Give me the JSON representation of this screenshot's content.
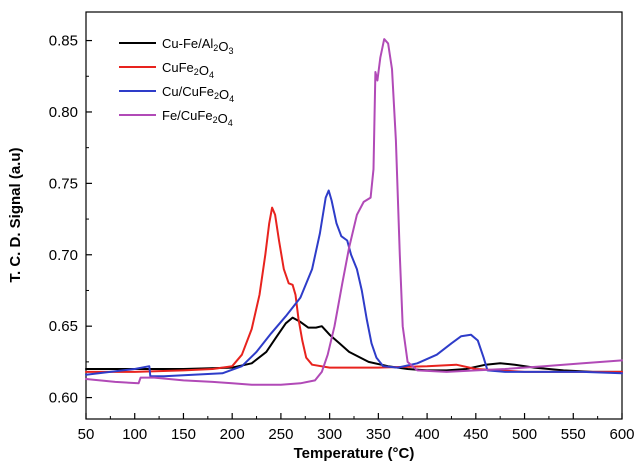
{
  "chart_data": {
    "type": "line",
    "title": "",
    "xlabel": "Temperature (°C)",
    "ylabel": "T. C. D. Signal (a.u)",
    "xlim": [
      50,
      600
    ],
    "ylim": [
      0.585,
      0.87
    ],
    "xticks": [
      50,
      100,
      150,
      200,
      250,
      300,
      350,
      400,
      450,
      500,
      550,
      600
    ],
    "xtick_labels": [
      "50",
      "100",
      "150",
      "200",
      "250",
      "300",
      "350",
      "400",
      "450",
      "500",
      "550",
      "600"
    ],
    "yticks": [
      0.6,
      0.65,
      0.7,
      0.75,
      0.8,
      0.85
    ],
    "ytick_labels": [
      "0.60",
      "0.65",
      "0.70",
      "0.75",
      "0.80",
      "0.85"
    ],
    "grid": false,
    "legend_position": "top-left",
    "series": [
      {
        "name": "Cu-Fe/Al2O3",
        "label_parts": [
          {
            "t": "Cu-Fe/Al"
          },
          {
            "t": "2",
            "sub": true
          },
          {
            "t": "O"
          },
          {
            "t": "3",
            "sub": true
          }
        ],
        "color": "#000000",
        "points": [
          [
            50,
            0.62
          ],
          [
            100,
            0.62
          ],
          [
            150,
            0.62
          ],
          [
            200,
            0.621
          ],
          [
            220,
            0.624
          ],
          [
            235,
            0.632
          ],
          [
            245,
            0.642
          ],
          [
            255,
            0.652
          ],
          [
            262,
            0.656
          ],
          [
            270,
            0.653
          ],
          [
            278,
            0.649
          ],
          [
            286,
            0.649
          ],
          [
            292,
            0.65
          ],
          [
            300,
            0.644
          ],
          [
            310,
            0.638
          ],
          [
            320,
            0.632
          ],
          [
            340,
            0.625
          ],
          [
            360,
            0.622
          ],
          [
            380,
            0.62
          ],
          [
            400,
            0.619
          ],
          [
            420,
            0.619
          ],
          [
            440,
            0.62
          ],
          [
            460,
            0.623
          ],
          [
            475,
            0.624
          ],
          [
            490,
            0.623
          ],
          [
            510,
            0.621
          ],
          [
            540,
            0.619
          ],
          [
            570,
            0.618
          ],
          [
            600,
            0.618
          ]
        ]
      },
      {
        "name": "CuFe2O4",
        "label_parts": [
          {
            "t": "CuFe"
          },
          {
            "t": "2",
            "sub": true
          },
          {
            "t": "O"
          },
          {
            "t": "4",
            "sub": true
          }
        ],
        "color": "#e8231e",
        "points": [
          [
            50,
            0.618
          ],
          [
            100,
            0.618
          ],
          [
            150,
            0.619
          ],
          [
            180,
            0.62
          ],
          [
            200,
            0.622
          ],
          [
            210,
            0.63
          ],
          [
            220,
            0.648
          ],
          [
            228,
            0.672
          ],
          [
            234,
            0.7
          ],
          [
            238,
            0.722
          ],
          [
            241,
            0.733
          ],
          [
            244,
            0.728
          ],
          [
            248,
            0.71
          ],
          [
            253,
            0.69
          ],
          [
            258,
            0.68
          ],
          [
            262,
            0.679
          ],
          [
            265,
            0.672
          ],
          [
            268,
            0.655
          ],
          [
            272,
            0.64
          ],
          [
            276,
            0.628
          ],
          [
            282,
            0.623
          ],
          [
            300,
            0.621
          ],
          [
            350,
            0.621
          ],
          [
            400,
            0.622
          ],
          [
            430,
            0.623
          ],
          [
            450,
            0.62
          ],
          [
            500,
            0.618
          ],
          [
            550,
            0.618
          ],
          [
            600,
            0.618
          ]
        ]
      },
      {
        "name": "Cu/CuFe2O4",
        "label_parts": [
          {
            "t": "Cu/CuFe"
          },
          {
            "t": "2",
            "sub": true
          },
          {
            "t": "O"
          },
          {
            "t": "4",
            "sub": true
          }
        ],
        "color": "#2e3cc9",
        "points": [
          [
            50,
            0.616
          ],
          [
            100,
            0.62
          ],
          [
            115,
            0.622
          ],
          [
            116,
            0.615
          ],
          [
            130,
            0.615
          ],
          [
            160,
            0.616
          ],
          [
            190,
            0.617
          ],
          [
            210,
            0.622
          ],
          [
            225,
            0.632
          ],
          [
            240,
            0.645
          ],
          [
            255,
            0.657
          ],
          [
            270,
            0.67
          ],
          [
            282,
            0.69
          ],
          [
            290,
            0.715
          ],
          [
            296,
            0.74
          ],
          [
            299,
            0.745
          ],
          [
            302,
            0.738
          ],
          [
            307,
            0.722
          ],
          [
            312,
            0.713
          ],
          [
            318,
            0.71
          ],
          [
            322,
            0.7
          ],
          [
            328,
            0.69
          ],
          [
            333,
            0.675
          ],
          [
            338,
            0.655
          ],
          [
            343,
            0.638
          ],
          [
            348,
            0.628
          ],
          [
            355,
            0.622
          ],
          [
            370,
            0.621
          ],
          [
            390,
            0.624
          ],
          [
            410,
            0.63
          ],
          [
            425,
            0.638
          ],
          [
            435,
            0.643
          ],
          [
            445,
            0.644
          ],
          [
            452,
            0.64
          ],
          [
            458,
            0.628
          ],
          [
            462,
            0.619
          ],
          [
            480,
            0.618
          ],
          [
            520,
            0.618
          ],
          [
            560,
            0.618
          ],
          [
            600,
            0.617
          ]
        ]
      },
      {
        "name": "Fe/CuFe2O4",
        "label_parts": [
          {
            "t": "Fe/CuFe"
          },
          {
            "t": "2",
            "sub": true
          },
          {
            "t": "O"
          },
          {
            "t": "4",
            "sub": true
          }
        ],
        "color": "#b14ab7",
        "points": [
          [
            50,
            0.613
          ],
          [
            80,
            0.611
          ],
          [
            104,
            0.61
          ],
          [
            106,
            0.614
          ],
          [
            120,
            0.614
          ],
          [
            150,
            0.612
          ],
          [
            180,
            0.611
          ],
          [
            200,
            0.61
          ],
          [
            220,
            0.609
          ],
          [
            250,
            0.609
          ],
          [
            270,
            0.61
          ],
          [
            285,
            0.612
          ],
          [
            292,
            0.618
          ],
          [
            298,
            0.63
          ],
          [
            305,
            0.65
          ],
          [
            313,
            0.68
          ],
          [
            320,
            0.705
          ],
          [
            328,
            0.728
          ],
          [
            335,
            0.737
          ],
          [
            342,
            0.74
          ],
          [
            345,
            0.76
          ],
          [
            347,
            0.828
          ],
          [
            349,
            0.822
          ],
          [
            352,
            0.838
          ],
          [
            356,
            0.851
          ],
          [
            360,
            0.848
          ],
          [
            364,
            0.83
          ],
          [
            368,
            0.78
          ],
          [
            372,
            0.7
          ],
          [
            375,
            0.65
          ],
          [
            380,
            0.625
          ],
          [
            390,
            0.619
          ],
          [
            420,
            0.618
          ],
          [
            450,
            0.619
          ],
          [
            480,
            0.62
          ],
          [
            520,
            0.622
          ],
          [
            560,
            0.624
          ],
          [
            600,
            0.626
          ]
        ]
      }
    ]
  }
}
